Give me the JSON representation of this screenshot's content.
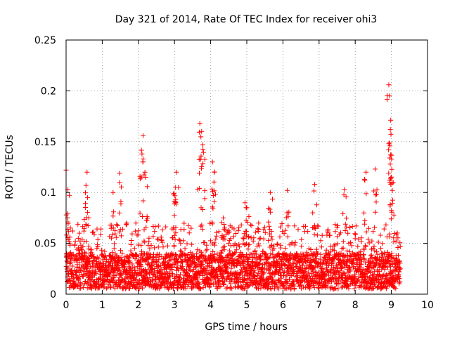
{
  "chart_data": {
    "type": "scatter",
    "title": "Day 321 of 2014, Rate Of TEC Index for receiver ohi3",
    "xlabel": "GPS time / hours",
    "ylabel": "ROTI / TECUs",
    "xlim": [
      0,
      10
    ],
    "ylim": [
      0,
      0.25
    ],
    "xticks": [
      "0",
      "1",
      "2",
      "3",
      "4",
      "5",
      "6",
      "7",
      "8",
      "9",
      "10"
    ],
    "yticks": [
      "0",
      "0.05",
      "0.1",
      "0.15",
      "0.2",
      "0.25"
    ],
    "grid": true,
    "marker": "+",
    "series": [
      {
        "name": "ROTI",
        "color": "#ff0000",
        "x_range_hours": [
          0,
          9.25
        ],
        "approx_point_count": 3000,
        "approx_density_per_hour": 320,
        "baseline_range": [
          0.005,
          0.04
        ],
        "typical_upper_envelope": [
          0.05,
          0.07
        ],
        "notable_peaks": [
          {
            "x": 0.0,
            "y": 0.122
          },
          {
            "x": 0.05,
            "y": 0.103
          },
          {
            "x": 0.58,
            "y": 0.12
          },
          {
            "x": 0.55,
            "y": 0.107
          },
          {
            "x": 1.48,
            "y": 0.119
          },
          {
            "x": 1.3,
            "y": 0.1
          },
          {
            "x": 2.13,
            "y": 0.156
          },
          {
            "x": 2.1,
            "y": 0.138
          },
          {
            "x": 2.2,
            "y": 0.115
          },
          {
            "x": 3.05,
            "y": 0.12
          },
          {
            "x": 3.03,
            "y": 0.105
          },
          {
            "x": 3.7,
            "y": 0.168
          },
          {
            "x": 3.75,
            "y": 0.16
          },
          {
            "x": 3.78,
            "y": 0.147
          },
          {
            "x": 4.05,
            "y": 0.13
          },
          {
            "x": 4.1,
            "y": 0.12
          },
          {
            "x": 5.65,
            "y": 0.1
          },
          {
            "x": 6.12,
            "y": 0.102
          },
          {
            "x": 6.88,
            "y": 0.108
          },
          {
            "x": 7.7,
            "y": 0.103
          },
          {
            "x": 8.3,
            "y": 0.12
          },
          {
            "x": 8.55,
            "y": 0.123
          },
          {
            "x": 8.93,
            "y": 0.206
          },
          {
            "x": 8.95,
            "y": 0.195
          },
          {
            "x": 8.97,
            "y": 0.162
          },
          {
            "x": 8.98,
            "y": 0.137
          },
          {
            "x": 9.05,
            "y": 0.11
          },
          {
            "x": 4.95,
            "y": 0.09
          },
          {
            "x": 5.0,
            "y": 0.085
          },
          {
            "x": 4.35,
            "y": 0.075
          }
        ]
      }
    ]
  }
}
